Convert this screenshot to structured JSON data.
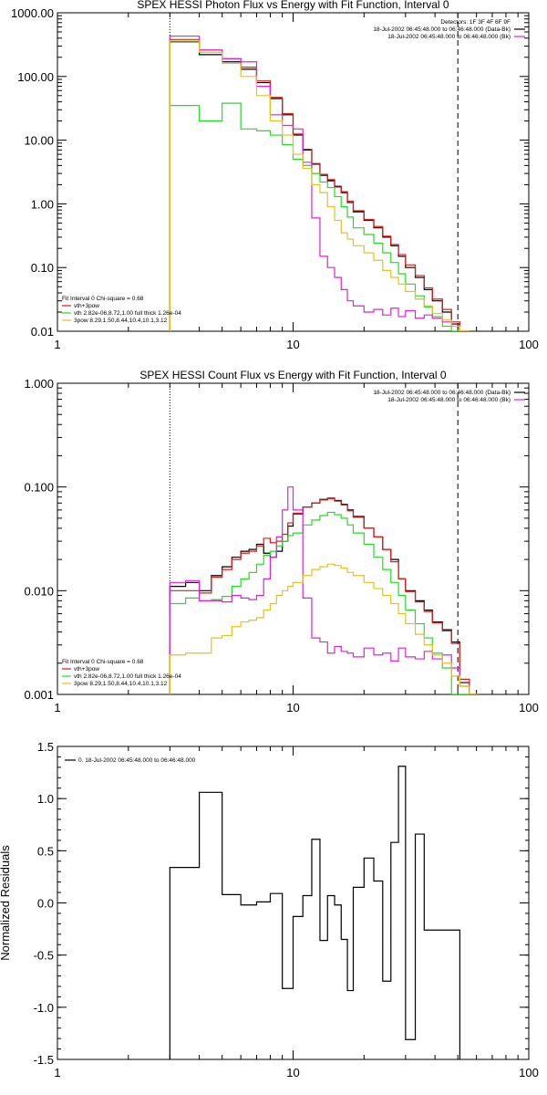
{
  "colors": {
    "black": "#000000",
    "red": "#e01b1b",
    "green": "#22dd22",
    "magenta": "#dd22dd",
    "gold": "#e6c21a"
  },
  "chart_data": [
    {
      "type": "line",
      "title": "SPEX HESSI Photon Flux vs Energy with Fit Function, Interval 0",
      "xlabel": "",
      "ylabel": "",
      "xscale": "log",
      "yscale": "log",
      "xlim": [
        1,
        100
      ],
      "ylim": [
        0.01,
        1000
      ],
      "xticks": [
        {
          "v": 1,
          "label": "1"
        },
        {
          "v": 10,
          "label": "10"
        },
        {
          "v": 100,
          "label": "100"
        }
      ],
      "yticks": [
        {
          "v": 0.01,
          "label": "0.01"
        },
        {
          "v": 0.1,
          "label": "0.10"
        },
        {
          "v": 1,
          "label": "1.00"
        },
        {
          "v": 10,
          "label": "10.00"
        },
        {
          "v": 100,
          "label": "100.00"
        },
        {
          "v": 1000,
          "label": "1000.00"
        }
      ],
      "vlines": [
        {
          "x": 3,
          "style": "dotted"
        },
        {
          "x": 50,
          "style": "dashed"
        }
      ],
      "info_lines": [
        "Detectors: 1F 3F 4F 6F 9F",
        "18-Jul-2002 06:45:48.000 to 06:46:48.000 (Data-Bk)",
        "18-Jul-2002 06:45:48.000 to 06:46:48.000 (Bk)"
      ],
      "info_colors": [
        "black",
        "black",
        "magenta"
      ],
      "fit_text": [
        "Fit Interval 0   Chi-square = 0.68",
        "vth+3pow",
        "vth 2.82e-06,8.72,1.00  full thick 1.26e-04",
        "3pow 8.29,1.50,8.44,10.4,10.1,3.12"
      ],
      "fit_colors": [
        "black",
        "red",
        "green",
        "gold"
      ],
      "edges": [
        3,
        4,
        5,
        6,
        7,
        8,
        9,
        10,
        11,
        12,
        13,
        14,
        15,
        16,
        17,
        18,
        20,
        22,
        24,
        26,
        28,
        30,
        33,
        36,
        39,
        43,
        47,
        51,
        56
      ],
      "series": [
        {
          "color": "black",
          "values": [
            350,
            220,
            170,
            130,
            80,
            45,
            25,
            12,
            7,
            4.2,
            2.8,
            2.3,
            1.85,
            1.5,
            1.05,
            0.75,
            0.55,
            0.42,
            0.3,
            0.22,
            0.15,
            0.1,
            0.07,
            0.045,
            0.03,
            0.02,
            0.013,
            0.01
          ]
        },
        {
          "color": "red",
          "values": [
            380,
            260,
            190,
            140,
            85,
            47,
            26,
            12.5,
            7.2,
            4.3,
            2.9,
            2.4,
            1.9,
            1.55,
            1.1,
            0.78,
            0.57,
            0.44,
            0.31,
            0.23,
            0.16,
            0.11,
            0.075,
            0.048,
            0.032,
            0.022,
            0.014,
            0.01
          ]
        },
        {
          "color": "green",
          "values": [
            35,
            20,
            38,
            15,
            14,
            12,
            8.5,
            5,
            4,
            3,
            2.2,
            1.8,
            1.3,
            0.9,
            0.62,
            0.42,
            0.33,
            0.24,
            0.17,
            0.12,
            0.08,
            0.055,
            0.036,
            0.024,
            0.017,
            0.012,
            0.01,
            0.01
          ]
        },
        {
          "color": "magenta",
          "values": [
            430,
            260,
            190,
            170,
            70,
            25,
            17,
            15,
            4.5,
            0.6,
            0.15,
            0.1,
            0.07,
            0.045,
            0.03,
            0.025,
            0.02,
            0.022,
            0.018,
            0.023,
            0.017,
            0.021,
            0.016,
            0.018,
            0.016,
            0.014,
            0.012,
            0.01
          ]
        },
        {
          "color": "gold",
          "values": [
            360,
            240,
            160,
            100,
            50,
            20,
            12,
            6,
            3.6,
            2,
            1.5,
            0.9,
            0.55,
            0.35,
            0.28,
            0.22,
            0.17,
            0.13,
            0.09,
            0.07,
            0.055,
            0.042,
            0.032,
            0.025,
            0.019,
            0.015,
            0.012,
            0.01
          ]
        }
      ]
    },
    {
      "type": "line",
      "title": "SPEX HESSI Count Flux vs Energy with Fit Function, Interval 0",
      "xlabel": "",
      "ylabel": "",
      "xscale": "log",
      "yscale": "log",
      "xlim": [
        1,
        100
      ],
      "ylim": [
        0.001,
        1
      ],
      "xticks": [
        {
          "v": 1,
          "label": "1"
        },
        {
          "v": 10,
          "label": "10"
        },
        {
          "v": 100,
          "label": "100"
        }
      ],
      "yticks": [
        {
          "v": 0.001,
          "label": "0.001"
        },
        {
          "v": 0.01,
          "label": "0.010"
        },
        {
          "v": 0.1,
          "label": "0.100"
        },
        {
          "v": 1,
          "label": "1.000"
        }
      ],
      "vlines": [
        {
          "x": 3,
          "style": "dotted"
        },
        {
          "x": 50,
          "style": "dashed"
        }
      ],
      "info_lines": [
        "18-Jul-2002 06:45:48.000 to 06:46:48.000 (Data-Bk)",
        "18-Jul-2002 06:45:48.000 to 06:46:48.000 (Bk)"
      ],
      "info_colors": [
        "black",
        "magenta"
      ],
      "fit_text": [
        "Fit Interval 0   Chi-square = 0.68",
        "vth+3pow",
        "vth 2.82e-06,8.72,1.00  full thick 1.26e-04",
        "3pow 8.29,1.50,8.44,10.4,10.1,3.12"
      ],
      "fit_colors": [
        "black",
        "red",
        "green",
        "gold"
      ],
      "edges": [
        3,
        3.5,
        4,
        4.5,
        5,
        5.5,
        6,
        6.5,
        7,
        7.5,
        8,
        8.5,
        9,
        9.5,
        10,
        11,
        12,
        13,
        14,
        15,
        16,
        17,
        18,
        20,
        22,
        24,
        26,
        28,
        30,
        33,
        36,
        39,
        43,
        47,
        51,
        56,
        61
      ],
      "series": [
        {
          "color": "black",
          "values": [
            0.011,
            0.012,
            0.01,
            0.014,
            0.017,
            0.021,
            0.024,
            0.025,
            0.028,
            0.023,
            0.021,
            0.024,
            0.03,
            0.042,
            0.055,
            0.064,
            0.07,
            0.076,
            0.078,
            0.074,
            0.068,
            0.06,
            0.052,
            0.04,
            0.033,
            0.025,
            0.02,
            0.013,
            0.01,
            0.008,
            0.0065,
            0.005,
            0.0042,
            0.0032,
            0.0013,
            0.001
          ]
        },
        {
          "color": "red",
          "values": [
            0.01,
            0.01,
            0.0095,
            0.0135,
            0.016,
            0.02,
            0.023,
            0.024,
            0.027,
            0.032,
            0.029,
            0.03,
            0.035,
            0.045,
            0.056,
            0.064,
            0.07,
            0.075,
            0.077,
            0.073,
            0.067,
            0.059,
            0.051,
            0.04,
            0.033,
            0.025,
            0.019,
            0.013,
            0.0098,
            0.0078,
            0.0063,
            0.0049,
            0.0041,
            0.0031,
            0.0014,
            0.001
          ]
        },
        {
          "color": "green",
          "values": [
            0.0075,
            0.0085,
            0.008,
            0.0082,
            0.0088,
            0.011,
            0.013,
            0.015,
            0.018,
            0.022,
            0.024,
            0.027,
            0.03,
            0.034,
            0.036,
            0.043,
            0.048,
            0.053,
            0.057,
            0.054,
            0.05,
            0.043,
            0.036,
            0.028,
            0.021,
            0.016,
            0.012,
            0.009,
            0.0065,
            0.0048,
            0.0035,
            0.0025,
            0.0018,
            0.001,
            0.001,
            0.001
          ]
        },
        {
          "color": "magenta",
          "values": [
            0.012,
            0.0125,
            0.008,
            0.008,
            0.0078,
            0.009,
            0.0085,
            0.0082,
            0.009,
            0.013,
            0.021,
            0.033,
            0.06,
            0.1,
            0.06,
            0.0085,
            0.0035,
            0.0032,
            0.0025,
            0.0029,
            0.0026,
            0.0025,
            0.0023,
            0.0028,
            0.0024,
            0.0025,
            0.0021,
            0.0028,
            0.0023,
            0.0022,
            0.0026,
            0.0022,
            0.0024,
            0.0018,
            0.0012,
            0.001
          ]
        },
        {
          "color": "gold",
          "values": [
            0.0024,
            0.0025,
            0.0025,
            0.0035,
            0.0037,
            0.0045,
            0.005,
            0.0052,
            0.0055,
            0.0065,
            0.0075,
            0.009,
            0.01,
            0.011,
            0.012,
            0.014,
            0.016,
            0.017,
            0.018,
            0.0175,
            0.0165,
            0.015,
            0.014,
            0.012,
            0.0105,
            0.009,
            0.0075,
            0.006,
            0.0048,
            0.0038,
            0.003,
            0.0024,
            0.002,
            0.0015,
            0.0012,
            0.001
          ]
        }
      ]
    },
    {
      "type": "line",
      "title": "",
      "xlabel": "",
      "ylabel": "Normalized Residuals",
      "xscale": "log",
      "yscale": "linear",
      "xlim": [
        1,
        100
      ],
      "ylim": [
        -1.5,
        1.5
      ],
      "xticks": [
        {
          "v": 1,
          "label": "1"
        },
        {
          "v": 10,
          "label": "10"
        },
        {
          "v": 100,
          "label": "100"
        }
      ],
      "yticks": [
        {
          "v": -1.5,
          "label": "-1.5"
        },
        {
          "v": -1.0,
          "label": "-1.0"
        },
        {
          "v": -0.5,
          "label": "-0.5"
        },
        {
          "v": 0,
          "label": "0.0"
        },
        {
          "v": 0.5,
          "label": "0.5"
        },
        {
          "v": 1.0,
          "label": "1.0"
        },
        {
          "v": 1.5,
          "label": "1.5"
        }
      ],
      "legend": "0. 18-Jul-2002 06:45:48.000 to 06:46:48.000",
      "edges": [
        3,
        4,
        5,
        6,
        7,
        8,
        9,
        10,
        11,
        12,
        13,
        14,
        15,
        16,
        17,
        18,
        20,
        22,
        24,
        26,
        28,
        30,
        33,
        36,
        39,
        43,
        47,
        51
      ],
      "series": [
        {
          "color": "black",
          "values": [
            0.34,
            1.06,
            0.08,
            -0.02,
            0.01,
            0.09,
            -0.82,
            -0.13,
            0.07,
            0.61,
            -0.36,
            0.07,
            -0.02,
            -0.35,
            -0.84,
            0.15,
            0.43,
            0.21,
            -0.75,
            0.58,
            1.31,
            -1.31,
            0.66,
            -0.26,
            -0.26,
            -0.26,
            -0.26
          ]
        }
      ]
    }
  ]
}
